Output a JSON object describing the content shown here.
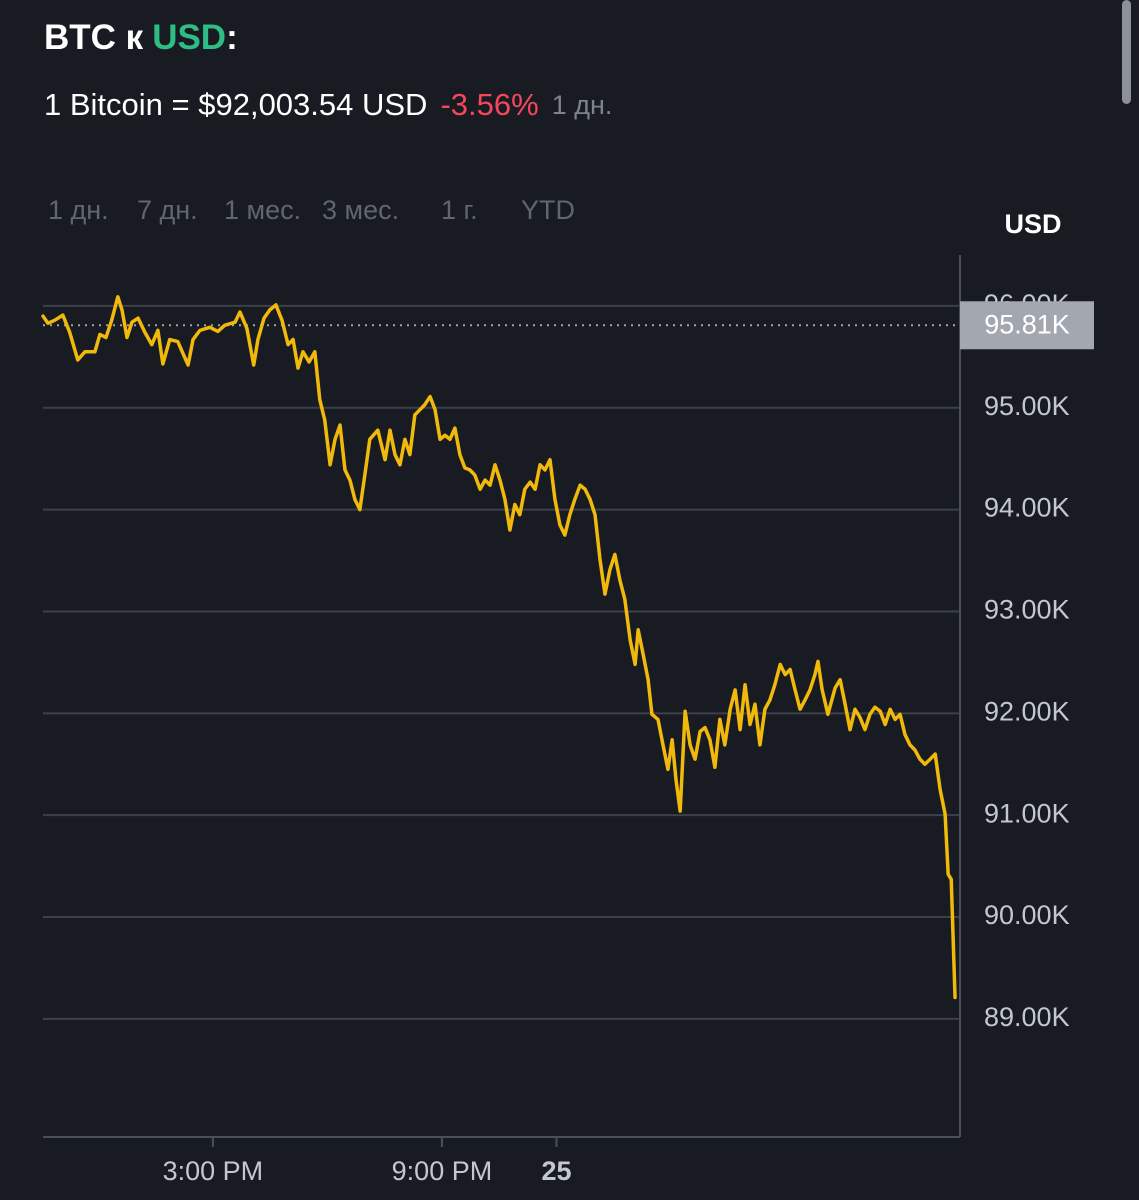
{
  "header": {
    "title_base": "BTC к",
    "title_quote": "USD",
    "title_suffix": ":",
    "rate": "1 Bitcoin = $92,003.54 USD",
    "change": "-3.56%",
    "period": "1 дн."
  },
  "ranges": [
    "1 дн.",
    "7 дн.",
    "1 мес.",
    "3 мес.",
    "1 г.",
    "YTD"
  ],
  "selected_range": 0,
  "chart_data": {
    "type": "line",
    "y_axis_label": "USD",
    "color": "#f0b90b",
    "x": [
      10.55,
      10.68,
      10.86,
      11.07,
      11.25,
      11.46,
      11.65,
      11.91,
      12.04,
      12.2,
      12.35,
      12.51,
      12.62,
      12.75,
      12.88,
      13.04,
      13.22,
      13.4,
      13.56,
      13.69,
      13.87,
      14.08,
      14.35,
      14.48,
      14.66,
      14.92,
      15.13,
      15.31,
      15.58,
      15.71,
      15.89,
      16.07,
      16.18,
      16.34,
      16.49,
      16.65,
      16.81,
      16.97,
      17.1,
      17.23,
      17.36,
      17.52,
      17.67,
      17.8,
      17.93,
      18.07,
      18.2,
      18.33,
      18.46,
      18.59,
      18.72,
      18.85,
      18.98,
      19.11,
      19.32,
      19.51,
      19.64,
      19.77,
      19.9,
      20.03,
      20.16,
      20.29,
      20.42,
      20.55,
      20.69,
      20.82,
      20.95,
      21.08,
      21.21,
      21.34,
      21.47,
      21.6,
      21.73,
      21.86,
      22.0,
      22.13,
      22.26,
      22.39,
      22.52,
      22.65,
      22.78,
      22.91,
      23.04,
      23.17,
      23.31,
      23.44,
      23.57,
      23.7,
      23.83,
      23.96,
      24.09,
      24.22,
      24.35,
      24.48,
      24.62,
      24.75,
      24.88,
      25.01,
      25.14,
      25.27,
      25.4,
      25.53,
      25.66,
      25.79,
      25.93,
      26.06,
      26.14,
      26.27,
      26.4,
      26.5,
      26.66,
      26.79,
      26.92,
      27.03,
      27.13,
      27.24,
      27.37,
      27.5,
      27.63,
      27.76,
      27.89,
      28.02,
      28.15,
      28.28,
      28.41,
      28.55,
      28.68,
      28.81,
      28.94,
      29.07,
      29.2,
      29.33,
      29.46,
      29.59,
      29.72,
      29.86,
      29.99,
      30.12,
      30.25,
      30.38,
      30.51,
      30.64,
      30.77,
      30.85,
      30.96,
      31.11,
      31.3,
      31.43,
      31.56,
      31.69,
      31.82,
      31.95,
      32.08,
      32.21,
      32.34,
      32.48,
      32.61,
      32.74,
      32.87,
      33.0,
      33.13,
      33.26,
      33.39,
      33.52,
      33.65,
      33.79,
      33.92,
      34.05,
      34.18,
      34.26,
      34.34,
      34.44
    ],
    "values": [
      95900,
      95830,
      95860,
      95910,
      95740,
      95470,
      95550,
      95550,
      95720,
      95690,
      95860,
      96090,
      95960,
      95690,
      95840,
      95880,
      95740,
      95620,
      95760,
      95430,
      95670,
      95650,
      95420,
      95670,
      95760,
      95790,
      95750,
      95810,
      95840,
      95940,
      95780,
      95420,
      95670,
      95880,
      95960,
      96010,
      95860,
      95620,
      95670,
      95390,
      95550,
      95450,
      95550,
      95080,
      94880,
      94440,
      94690,
      94830,
      94390,
      94290,
      94100,
      94000,
      94340,
      94690,
      94780,
      94490,
      94780,
      94540,
      94440,
      94690,
      94540,
      94930,
      94980,
      95030,
      95110,
      94980,
      94690,
      94730,
      94690,
      94800,
      94540,
      94410,
      94390,
      94340,
      94200,
      94290,
      94240,
      94440,
      94290,
      94100,
      93800,
      94050,
      93950,
      94200,
      94270,
      94200,
      94440,
      94390,
      94490,
      94100,
      93850,
      93750,
      93950,
      94100,
      94240,
      94200,
      94100,
      93950,
      93510,
      93170,
      93410,
      93560,
      93310,
      93120,
      92720,
      92480,
      92820,
      92580,
      92330,
      91990,
      91940,
      91690,
      91450,
      91740,
      91350,
      91040,
      92020,
      91690,
      91550,
      91820,
      91860,
      91740,
      91470,
      91940,
      91690,
      92040,
      92230,
      91840,
      92280,
      91890,
      92090,
      91690,
      92040,
      92130,
      92280,
      92480,
      92380,
      92430,
      92230,
      92040,
      92130,
      92230,
      92380,
      92510,
      92230,
      91990,
      92250,
      92330,
      92090,
      91840,
      92040,
      91960,
      91840,
      91990,
      92060,
      92020,
      91890,
      92040,
      91940,
      91990,
      91790,
      91690,
      91640,
      91550,
      91500,
      91550,
      91600,
      91250,
      91010,
      90420,
      90370,
      89210
    ],
    "reference": {
      "value": 95810,
      "label": "95.81K"
    },
    "xlim": [
      10.55,
      34.57
    ],
    "ylim": [
      87840,
      96500
    ],
    "xticks": [
      {
        "value": 15,
        "label": "3:00 PM"
      },
      {
        "value": 21,
        "label": "9:00 PM"
      },
      {
        "value": 24,
        "label": "25"
      }
    ],
    "yticks": [
      {
        "value": 89000,
        "label": "89.00K"
      },
      {
        "value": 90000,
        "label": "90.00K"
      },
      {
        "value": 91000,
        "label": "91.00K"
      },
      {
        "value": 92000,
        "label": "92.00K"
      },
      {
        "value": 93000,
        "label": "93.00K"
      },
      {
        "value": 94000,
        "label": "94.00K"
      },
      {
        "value": 95000,
        "label": "95.00K"
      },
      {
        "value": 96000,
        "label": "96.00K"
      }
    ],
    "grid": true
  }
}
